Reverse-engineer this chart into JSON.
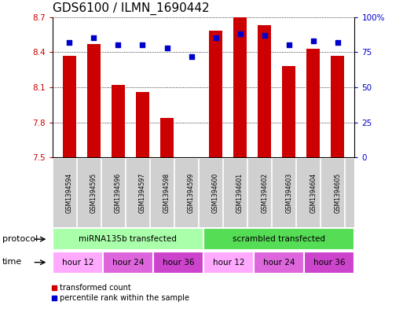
{
  "title": "GDS6100 / ILMN_1690442",
  "samples": [
    "GSM1394594",
    "GSM1394595",
    "GSM1394596",
    "GSM1394597",
    "GSM1394598",
    "GSM1394599",
    "GSM1394600",
    "GSM1394601",
    "GSM1394602",
    "GSM1394603",
    "GSM1394604",
    "GSM1394605"
  ],
  "bar_values": [
    8.37,
    8.47,
    8.12,
    8.06,
    7.84,
    7.505,
    8.58,
    8.7,
    8.63,
    8.28,
    8.43,
    8.37
  ],
  "dot_values": [
    82,
    85,
    80,
    80,
    78,
    72,
    85,
    88,
    87,
    80,
    83,
    82
  ],
  "ylim_left": [
    7.5,
    8.7
  ],
  "ylim_right": [
    0,
    100
  ],
  "yticks_left": [
    7.5,
    7.8,
    8.1,
    8.4,
    8.7
  ],
  "yticks_right": [
    0,
    25,
    50,
    75,
    100
  ],
  "bar_color": "#cc0000",
  "dot_color": "#0000cc",
  "protocol_groups": [
    {
      "label": "miRNA135b transfected",
      "start": 0,
      "end": 6,
      "color": "#aaffaa"
    },
    {
      "label": "scrambled transfected",
      "start": 6,
      "end": 12,
      "color": "#55dd55"
    }
  ],
  "time_groups": [
    {
      "label": "hour 12",
      "start": 0,
      "end": 2,
      "color": "#ffaaff"
    },
    {
      "label": "hour 24",
      "start": 2,
      "end": 4,
      "color": "#dd66dd"
    },
    {
      "label": "hour 36",
      "start": 4,
      "end": 6,
      "color": "#cc44cc"
    },
    {
      "label": "hour 12",
      "start": 6,
      "end": 8,
      "color": "#ffaaff"
    },
    {
      "label": "hour 24",
      "start": 8,
      "end": 10,
      "color": "#dd66dd"
    },
    {
      "label": "hour 36",
      "start": 10,
      "end": 12,
      "color": "#cc44cc"
    }
  ],
  "label_protocol": "protocol",
  "label_time": "time",
  "legend_bar": "transformed count",
  "legend_dot": "percentile rank within the sample",
  "bg_color": "#ffffff",
  "sample_bg": "#d0d0d0",
  "title_fontsize": 11,
  "tick_fontsize": 7.5,
  "sample_fontsize": 5.5,
  "row_fontsize": 7.5
}
